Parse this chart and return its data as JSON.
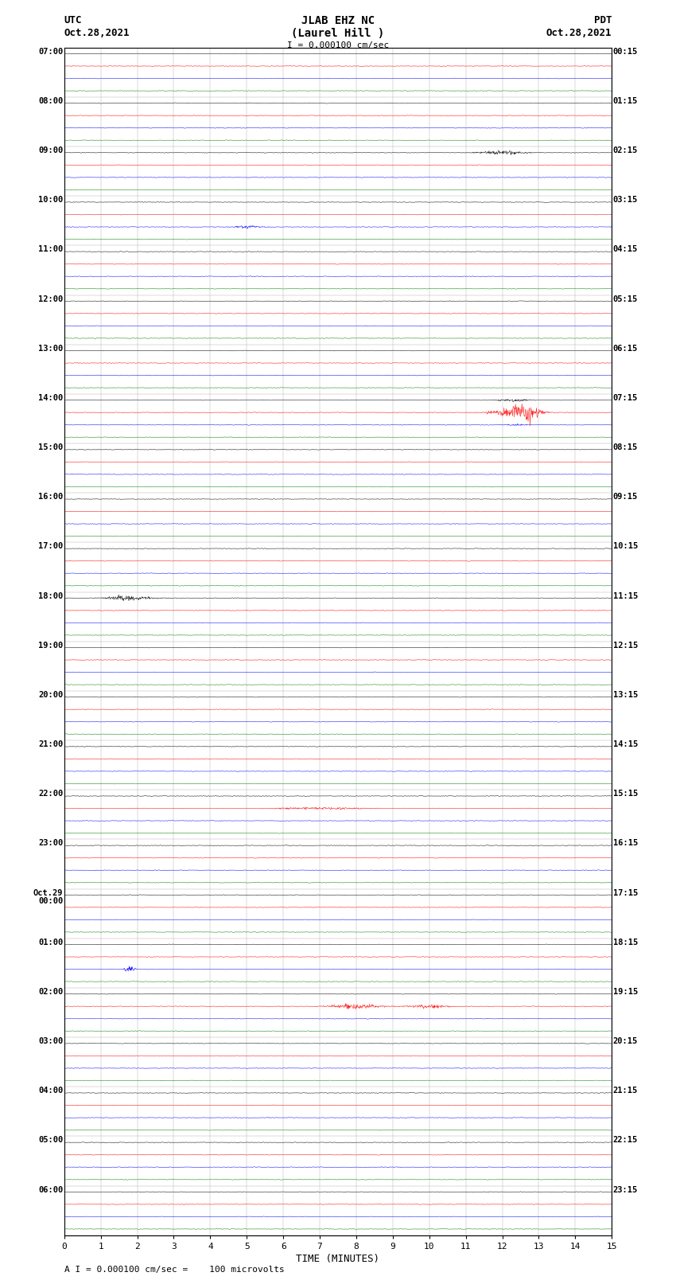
{
  "title_line1": "JLAB EHZ NC",
  "title_line2": "(Laurel Hill )",
  "scale_label": "I = 0.000100 cm/sec",
  "footer_label": "A I = 0.000100 cm/sec =    100 microvolts",
  "utc_label": "UTC",
  "utc_date": "Oct.28,2021",
  "pdt_label": "PDT",
  "pdt_date": "Oct.28,2021",
  "xlabel": "TIME (MINUTES)",
  "left_times": [
    "07:00",
    "08:00",
    "09:00",
    "10:00",
    "11:00",
    "12:00",
    "13:00",
    "14:00",
    "15:00",
    "16:00",
    "17:00",
    "18:00",
    "19:00",
    "20:00",
    "21:00",
    "22:00",
    "23:00",
    "Oct.29\n00:00",
    "01:00",
    "02:00",
    "03:00",
    "04:00",
    "05:00",
    "06:00"
  ],
  "right_times": [
    "00:15",
    "01:15",
    "02:15",
    "03:15",
    "04:15",
    "05:15",
    "06:15",
    "07:15",
    "08:15",
    "09:15",
    "10:15",
    "11:15",
    "12:15",
    "13:15",
    "14:15",
    "15:15",
    "16:15",
    "17:15",
    "18:15",
    "19:15",
    "20:15",
    "21:15",
    "22:15",
    "23:15"
  ],
  "num_hour_groups": 24,
  "traces_per_group": 4,
  "colors": [
    "black",
    "red",
    "blue",
    "green"
  ],
  "noise_std": 0.018,
  "bg_color": "white",
  "xmin": 0,
  "xmax": 15,
  "xticks": [
    0,
    1,
    2,
    3,
    4,
    5,
    6,
    7,
    8,
    9,
    10,
    11,
    12,
    13,
    14,
    15
  ]
}
